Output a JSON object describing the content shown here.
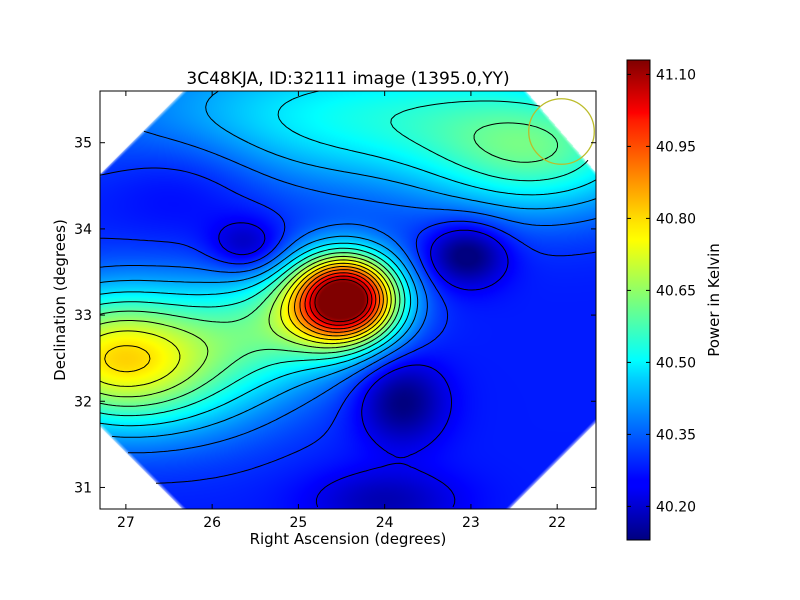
{
  "chart_data": {
    "type": "heatmap",
    "title": "3C48KJA, ID:32111 image (1395.0,YY)",
    "xlabel": "Right Ascension (degrees)",
    "ylabel": "Declination (degrees)",
    "xlim": [
      27.3,
      21.55
    ],
    "ylim": [
      30.75,
      35.6
    ],
    "x_ticks": [
      27,
      26,
      25,
      24,
      23,
      22
    ],
    "y_ticks": [
      31,
      32,
      33,
      34,
      35
    ],
    "x_tick_labels": [
      "27",
      "26",
      "25",
      "24",
      "23",
      "22"
    ],
    "y_tick_labels": [
      "31",
      "32",
      "33",
      "34",
      "35"
    ],
    "colorbar": {
      "label": "Power in Kelvin",
      "range": [
        40.13,
        41.13
      ],
      "ticks": [
        40.2,
        40.35,
        40.5,
        40.65,
        40.8,
        40.95,
        41.1
      ],
      "tick_labels": [
        "40.20",
        "40.35",
        "40.50",
        "40.65",
        "40.80",
        "40.95",
        "41.10"
      ],
      "colormap": "jet"
    },
    "background_level": 40.28,
    "features": [
      {
        "kind": "peak",
        "ra": 24.45,
        "dec": 33.2,
        "amplitude": 0.84,
        "sigma_ra": 0.42,
        "sigma_dec": 0.35
      },
      {
        "kind": "ridge",
        "ra": 25.05,
        "dec": 32.95,
        "amplitude": 0.22,
        "sigma_ra": 0.7,
        "sigma_dec": 0.45
      },
      {
        "kind": "plateau",
        "ra": 27.2,
        "dec": 32.5,
        "amplitude": 0.42,
        "sigma_ra": 0.8,
        "sigma_dec": 0.55
      },
      {
        "kind": "plateau",
        "ra": 26.1,
        "dec": 32.45,
        "amplitude": 0.18,
        "sigma_ra": 0.9,
        "sigma_dec": 0.6
      },
      {
        "kind": "band",
        "ra": 24.0,
        "dec": 35.3,
        "amplitude": 0.24,
        "sigma_ra": 2.2,
        "sigma_dec": 0.6
      },
      {
        "kind": "band",
        "ra": 22.2,
        "dec": 34.8,
        "amplitude": 0.2,
        "sigma_ra": 0.9,
        "sigma_dec": 0.5
      },
      {
        "kind": "dip",
        "ra": 23.05,
        "dec": 33.7,
        "amplitude": -0.18,
        "sigma_ra": 0.32,
        "sigma_dec": 0.25
      },
      {
        "kind": "dip",
        "ra": 23.8,
        "dec": 32.0,
        "amplitude": -0.16,
        "sigma_ra": 0.35,
        "sigma_dec": 0.35
      },
      {
        "kind": "dip",
        "ra": 25.6,
        "dec": 33.8,
        "amplitude": -0.12,
        "sigma_ra": 0.3,
        "sigma_dec": 0.22
      },
      {
        "kind": "dip",
        "ra": 24.0,
        "dec": 30.85,
        "amplitude": -0.1,
        "sigma_ra": 0.6,
        "sigma_dec": 0.25
      },
      {
        "kind": "dip",
        "ra": 26.3,
        "dec": 34.6,
        "amplitude": -0.06,
        "sigma_ra": 0.7,
        "sigma_dec": 0.45
      }
    ],
    "contour_levels": [
      40.24,
      40.3,
      40.36,
      40.42,
      40.48,
      40.54,
      40.6,
      40.66,
      40.72,
      40.78,
      40.84,
      40.9,
      40.96,
      41.02,
      41.08
    ],
    "contour_color": "#000000",
    "beam_circle": {
      "ra": 21.95,
      "dec": 35.13,
      "radius_deg": 0.38,
      "color": "#bcbc2a"
    }
  }
}
